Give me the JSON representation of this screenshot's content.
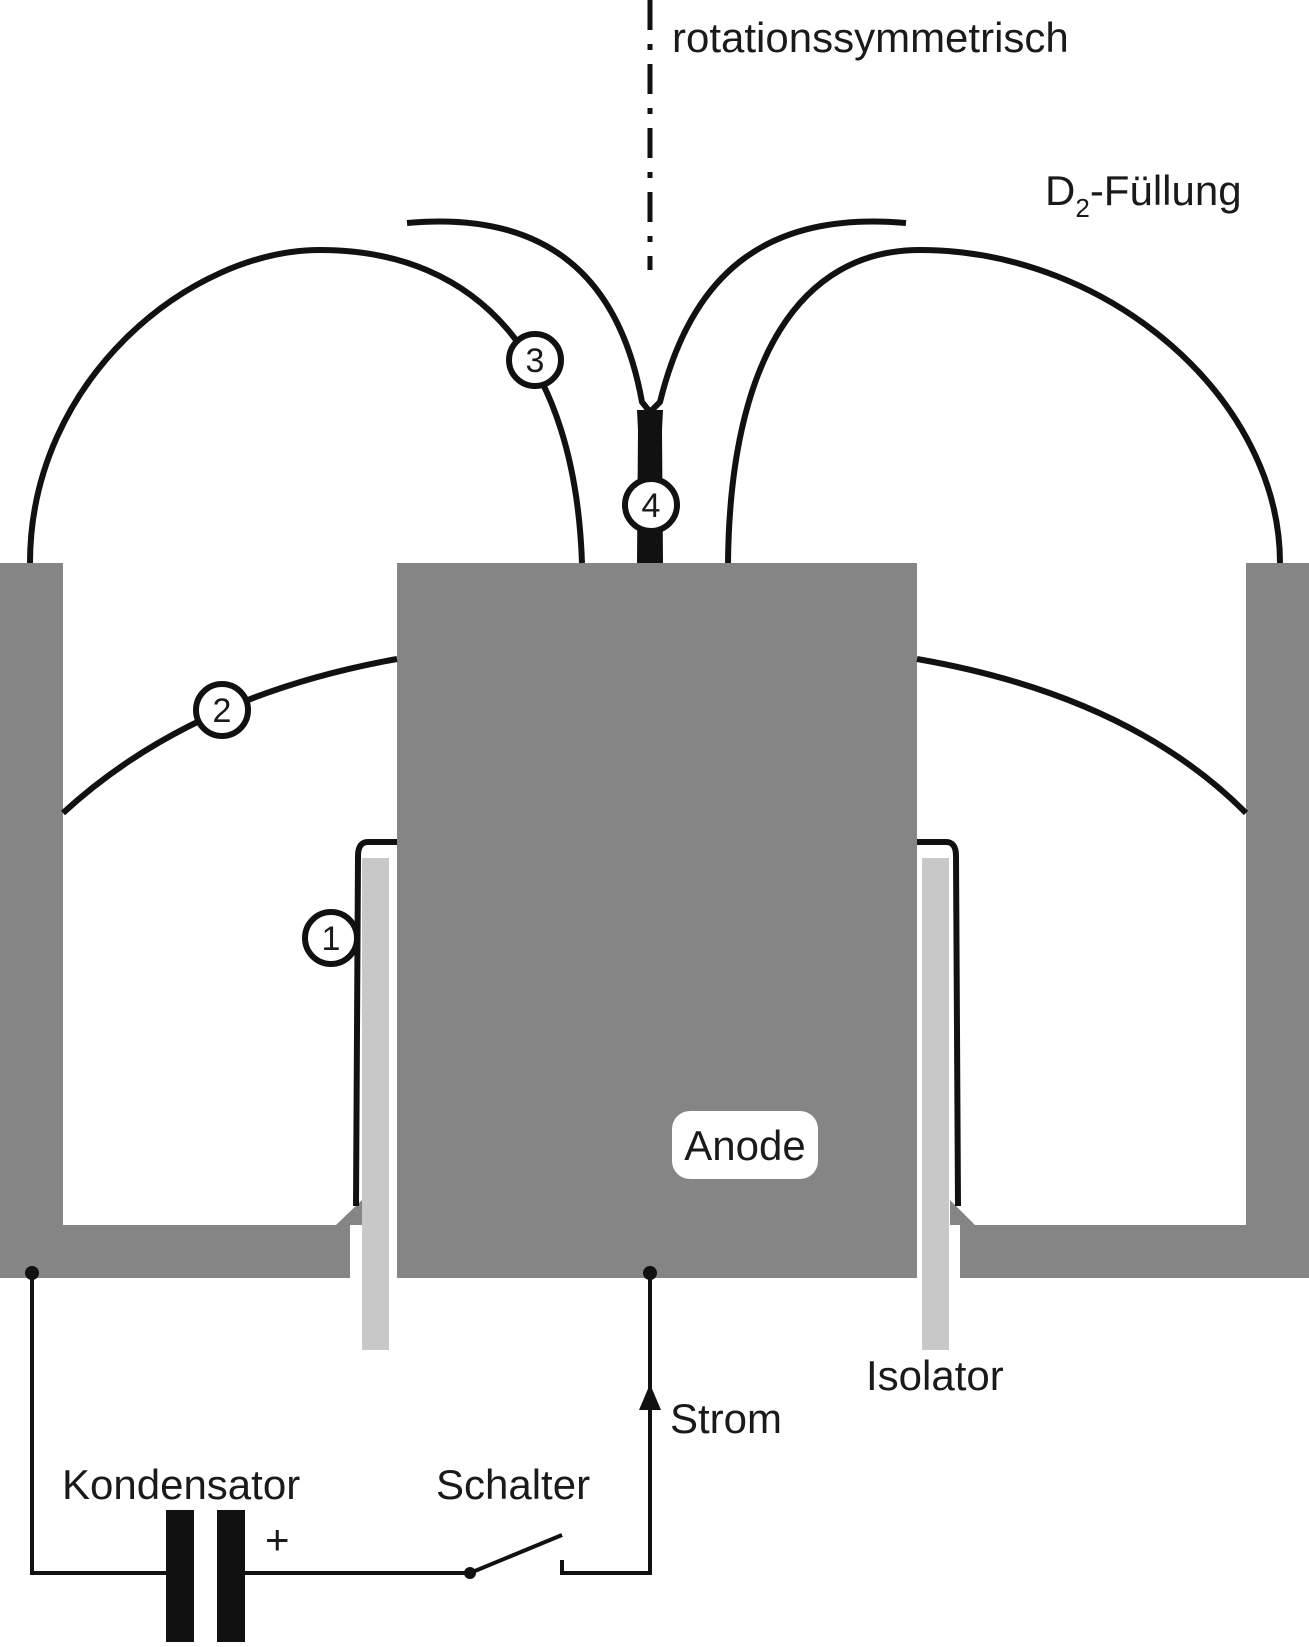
{
  "labels": {
    "axis": "rotationssymmetrisch",
    "filling_main": "D",
    "filling_sub": "2",
    "filling_rest": "-Füllung",
    "anode": "Anode",
    "isolator": "Isolator",
    "current": "Strom",
    "capacitor": "Kondensator",
    "switch": "Schalter",
    "plus": "+"
  },
  "stages": [
    "1",
    "2",
    "3",
    "4"
  ],
  "colors": {
    "electrode": "#858585",
    "insulator": "#c8c8c8",
    "line": "#111111",
    "background": "#ffffff"
  },
  "icons": {
    "capacitor": "capacitor-symbol",
    "switch": "open-switch-symbol",
    "current_direction": "arrow-up-icon"
  }
}
